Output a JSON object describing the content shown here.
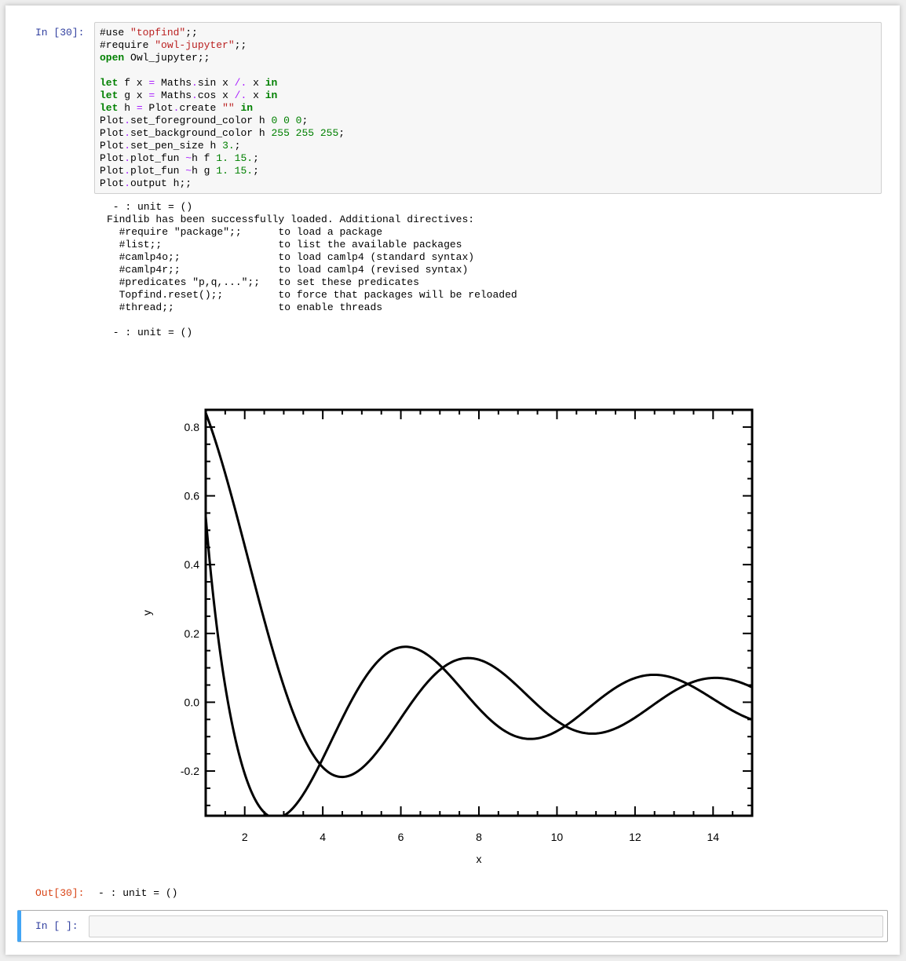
{
  "cell_in": {
    "prompt": "In [30]:",
    "code_lines": [
      [
        {
          "t": "#use ",
          "c": ""
        },
        {
          "t": "\"topfind\"",
          "c": "str"
        },
        {
          "t": ";;",
          "c": ""
        }
      ],
      [
        {
          "t": "#require ",
          "c": ""
        },
        {
          "t": "\"owl-jupyter\"",
          "c": "str"
        },
        {
          "t": ";;",
          "c": ""
        }
      ],
      [
        {
          "t": "open",
          "c": "kw"
        },
        {
          "t": " Owl_jupyter;;",
          "c": ""
        }
      ],
      [],
      [
        {
          "t": "let",
          "c": "kw"
        },
        {
          "t": " f x ",
          "c": ""
        },
        {
          "t": "=",
          "c": "op"
        },
        {
          "t": " Maths",
          "c": ""
        },
        {
          "t": ".",
          "c": "op"
        },
        {
          "t": "sin x ",
          "c": ""
        },
        {
          "t": "/.",
          "c": "op"
        },
        {
          "t": " x ",
          "c": ""
        },
        {
          "t": "in",
          "c": "kw"
        }
      ],
      [
        {
          "t": "let",
          "c": "kw"
        },
        {
          "t": " g x ",
          "c": ""
        },
        {
          "t": "=",
          "c": "op"
        },
        {
          "t": " Maths",
          "c": ""
        },
        {
          "t": ".",
          "c": "op"
        },
        {
          "t": "cos x ",
          "c": ""
        },
        {
          "t": "/.",
          "c": "op"
        },
        {
          "t": " x ",
          "c": ""
        },
        {
          "t": "in",
          "c": "kw"
        }
      ],
      [
        {
          "t": "let",
          "c": "kw"
        },
        {
          "t": " h ",
          "c": ""
        },
        {
          "t": "=",
          "c": "op"
        },
        {
          "t": " Plot",
          "c": ""
        },
        {
          "t": ".",
          "c": "op"
        },
        {
          "t": "create ",
          "c": ""
        },
        {
          "t": "\"\"",
          "c": "str"
        },
        {
          "t": " ",
          "c": ""
        },
        {
          "t": "in",
          "c": "kw"
        }
      ],
      [
        {
          "t": "Plot",
          "c": ""
        },
        {
          "t": ".",
          "c": "op"
        },
        {
          "t": "set_foreground_color h ",
          "c": ""
        },
        {
          "t": "0 0 0",
          "c": "num"
        },
        {
          "t": ";",
          "c": ""
        }
      ],
      [
        {
          "t": "Plot",
          "c": ""
        },
        {
          "t": ".",
          "c": "op"
        },
        {
          "t": "set_background_color h ",
          "c": ""
        },
        {
          "t": "255 255 255",
          "c": "num"
        },
        {
          "t": ";",
          "c": ""
        }
      ],
      [
        {
          "t": "Plot",
          "c": ""
        },
        {
          "t": ".",
          "c": "op"
        },
        {
          "t": "set_pen_size h ",
          "c": ""
        },
        {
          "t": "3.",
          "c": "num"
        },
        {
          "t": ";",
          "c": ""
        }
      ],
      [
        {
          "t": "Plot",
          "c": ""
        },
        {
          "t": ".",
          "c": "op"
        },
        {
          "t": "plot_fun ",
          "c": ""
        },
        {
          "t": "~",
          "c": "op"
        },
        {
          "t": "h f ",
          "c": ""
        },
        {
          "t": "1. 15.",
          "c": "num"
        },
        {
          "t": ";",
          "c": ""
        }
      ],
      [
        {
          "t": "Plot",
          "c": ""
        },
        {
          "t": ".",
          "c": "op"
        },
        {
          "t": "plot_fun ",
          "c": ""
        },
        {
          "t": "~",
          "c": "op"
        },
        {
          "t": "h g ",
          "c": ""
        },
        {
          "t": "1. 15.",
          "c": "num"
        },
        {
          "t": ";",
          "c": ""
        }
      ],
      [
        {
          "t": "Plot",
          "c": ""
        },
        {
          "t": ".",
          "c": "op"
        },
        {
          "t": "output h;;",
          "c": ""
        }
      ]
    ]
  },
  "stream_output": [
    " - : unit = ()",
    "Findlib has been successfully loaded. Additional directives:",
    "  #require \"package\";;      to load a package",
    "  #list;;                   to list the available packages",
    "  #camlp4o;;                to load camlp4 (standard syntax)",
    "  #camlp4r;;                to load camlp4 (revised syntax)",
    "  #predicates \"p,q,...\";;   to set these predicates",
    "  Topfind.reset();;         to force that packages will be reloaded",
    "  #thread;;                 to enable threads",
    "",
    " - : unit = ()"
  ],
  "chart_data": {
    "type": "line",
    "title": "",
    "xlabel": "x",
    "ylabel": "y",
    "xlim": [
      1,
      15
    ],
    "ylim": [
      -0.33,
      0.85
    ],
    "x_ticks": [
      2,
      4,
      6,
      8,
      10,
      12,
      14
    ],
    "x_tick_labels": [
      "2",
      "4",
      "6",
      "8",
      "10",
      "12",
      "14"
    ],
    "y_ticks": [
      -0.2,
      0.0,
      0.2,
      0.4,
      0.6,
      0.8
    ],
    "y_tick_labels": [
      "-0.2",
      "0.0",
      "0.2",
      "0.4",
      "0.6",
      "0.8"
    ],
    "grid": false,
    "legend": "none",
    "line_color": "#000000",
    "series": [
      {
        "function": "sin(x)/x",
        "x_range": [
          1,
          15
        ],
        "points": [
          [
            1,
            0.841
          ],
          [
            2,
            0.455
          ],
          [
            3,
            0.047
          ],
          [
            4,
            -0.189
          ],
          [
            4.49,
            -0.217
          ],
          [
            5,
            -0.192
          ],
          [
            6,
            -0.047
          ],
          [
            7,
            0.094
          ],
          [
            7.73,
            0.128
          ],
          [
            8,
            0.124
          ],
          [
            9,
            0.046
          ],
          [
            10,
            -0.054
          ],
          [
            10.9,
            -0.091
          ],
          [
            11,
            -0.091
          ],
          [
            12,
            -0.045
          ],
          [
            13,
            0.032
          ],
          [
            14,
            0.071
          ],
          [
            15,
            0.043
          ]
        ]
      },
      {
        "function": "cos(x)/x",
        "x_range": [
          1,
          15
        ],
        "points": [
          [
            1,
            0.54
          ],
          [
            2,
            -0.208
          ],
          [
            2.8,
            -0.336
          ],
          [
            3,
            -0.33
          ],
          [
            4,
            -0.163
          ],
          [
            5,
            0.057
          ],
          [
            6,
            0.16
          ],
          [
            6.12,
            0.162
          ],
          [
            7,
            0.108
          ],
          [
            8,
            -0.018
          ],
          [
            9,
            -0.101
          ],
          [
            9.32,
            -0.107
          ],
          [
            10,
            -0.084
          ],
          [
            11,
            0.0004
          ],
          [
            12,
            0.07
          ],
          [
            12.5,
            0.08
          ],
          [
            13,
            0.069
          ],
          [
            14,
            0.01
          ],
          [
            15,
            -0.051
          ]
        ]
      }
    ]
  },
  "cell_out": {
    "prompt": "Out[30]:",
    "value": "- : unit = ()"
  },
  "empty_cell": {
    "prompt": "In [ ]:"
  }
}
